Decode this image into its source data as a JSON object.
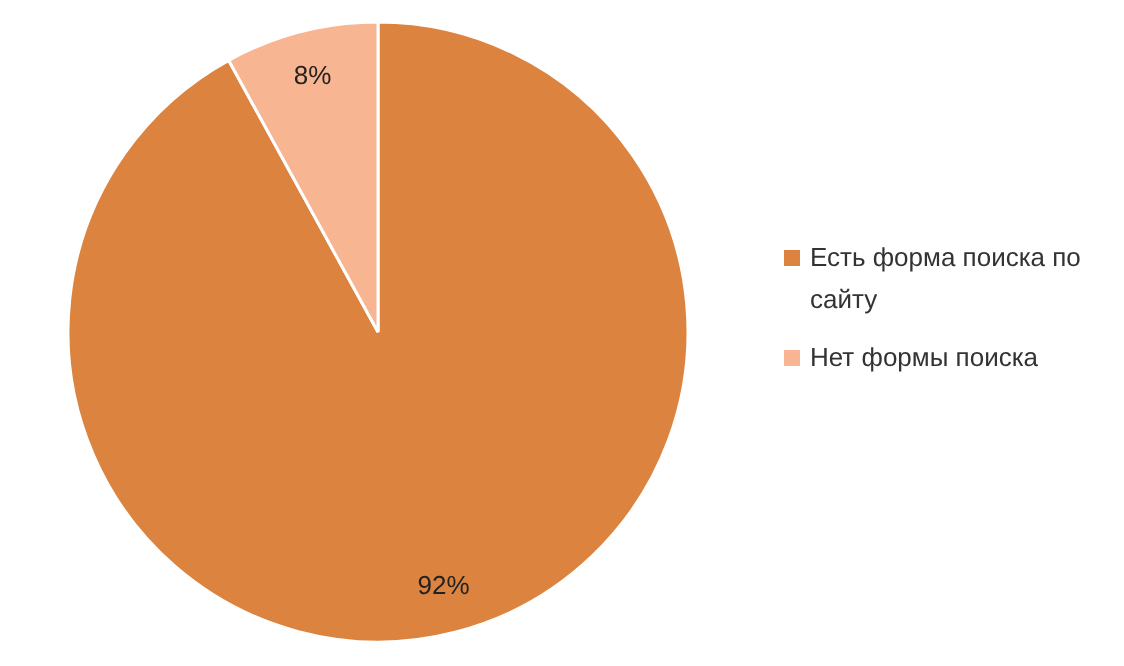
{
  "chart_data": {
    "type": "pie",
    "categories": [
      "Есть форма поиска по сайту",
      "Нет формы поиска"
    ],
    "values": [
      92,
      8
    ],
    "colors": [
      "#dc843f",
      "#f8b592"
    ],
    "value_labels": [
      "92%",
      "8%"
    ],
    "legend": "right"
  }
}
